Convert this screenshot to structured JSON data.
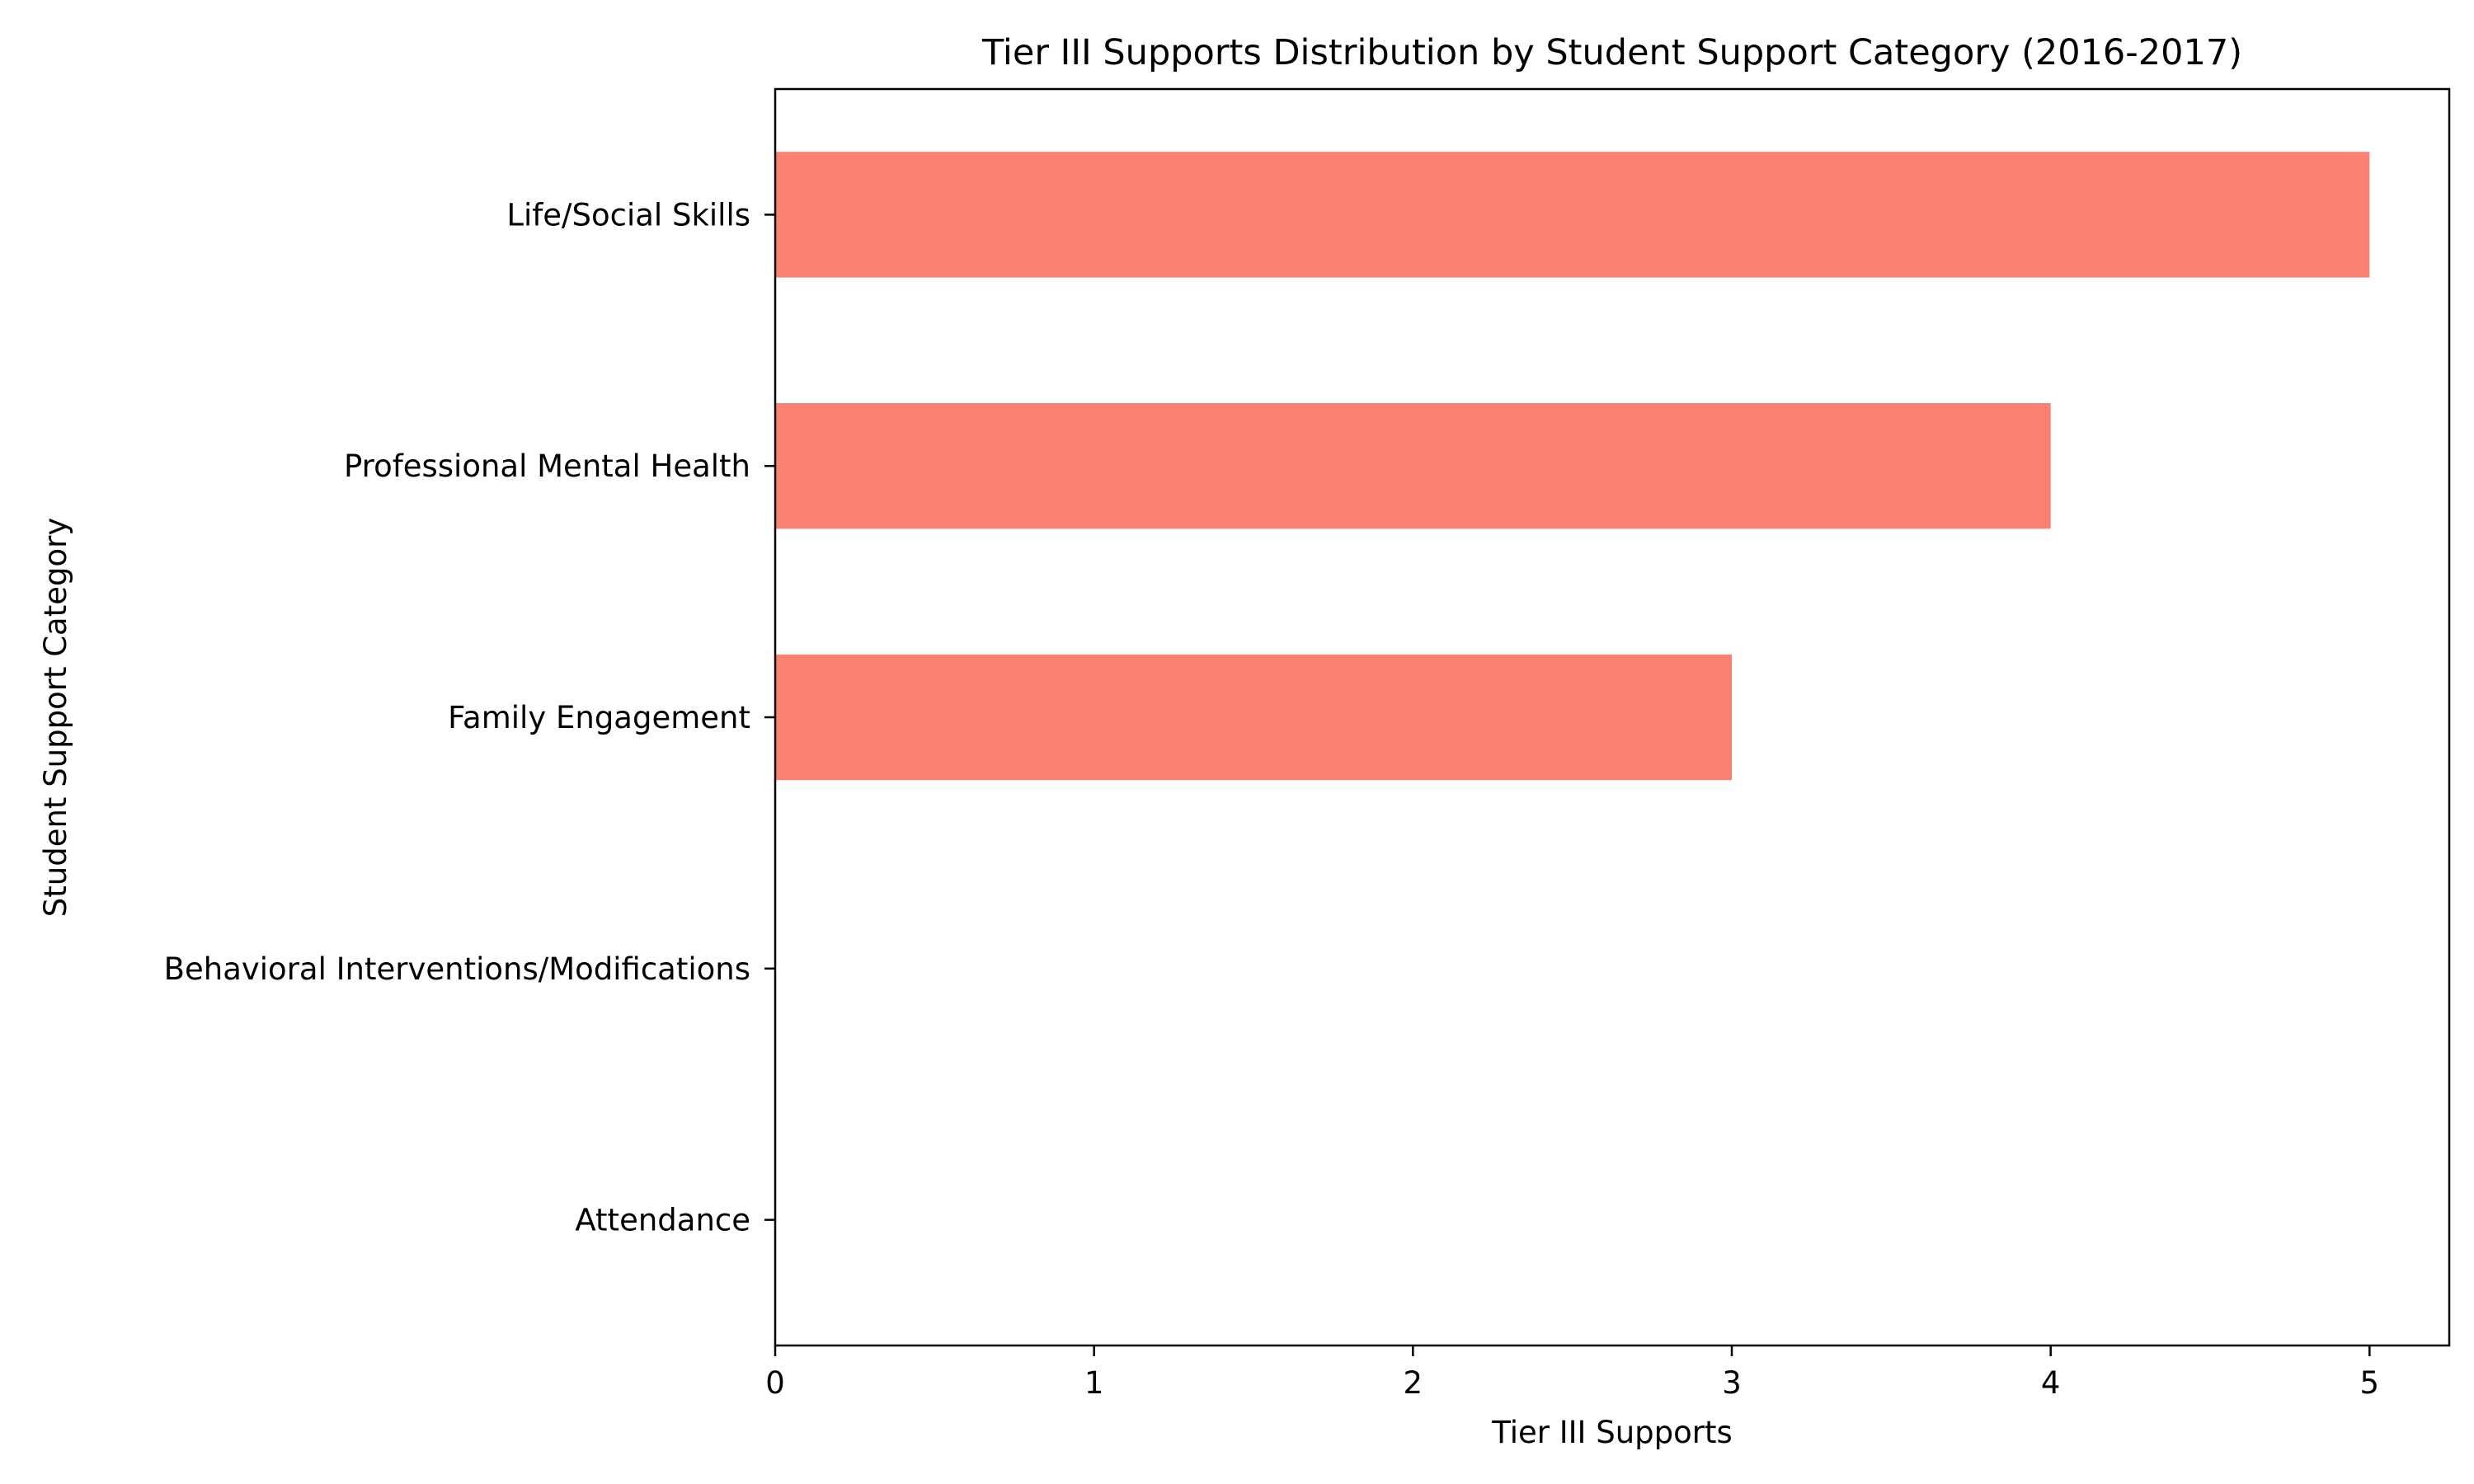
{
  "chart_data": {
    "type": "bar",
    "orientation": "horizontal",
    "title": "Tier III Supports Distribution by Student Support Category (2016-2017)",
    "xlabel": "Tier III Supports",
    "ylabel": "Student Support Category",
    "categories": [
      "Life/Social Skills",
      "Professional Mental Health",
      "Family Engagement",
      "Behavioral Interventions/Modifications",
      "Attendance"
    ],
    "values": [
      5,
      4,
      3,
      0,
      0
    ],
    "xlim": [
      0,
      5.25
    ],
    "xticks": [
      0,
      1,
      2,
      3,
      4,
      5
    ],
    "bar_color": "#fa8072",
    "grid": false,
    "legend": "none"
  }
}
